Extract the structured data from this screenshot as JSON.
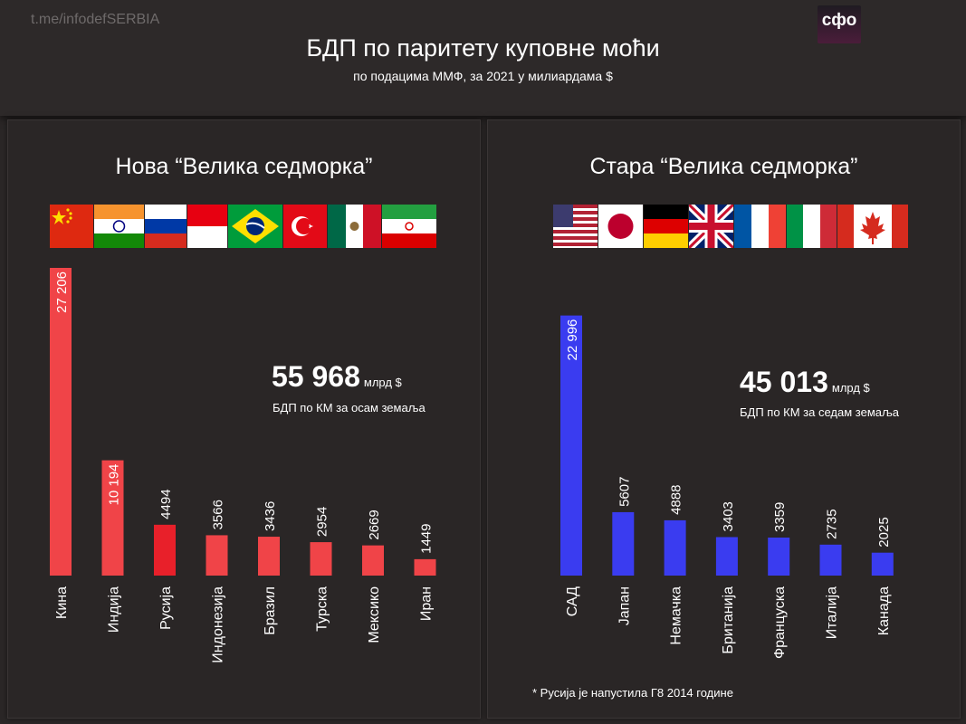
{
  "header": {
    "watermark": "t.me/infodefSERBIA",
    "logo_text": "сфо",
    "title": "БДП по паритету куповне моћи",
    "subtitle": "по подацима ММФ, за 2021 у милиардама $"
  },
  "left_panel": {
    "title": "Нова “Велика седморка”",
    "flags": [
      "china-flag",
      "india-flag",
      "russia-flag",
      "indonesia-flag",
      "brazil-flag",
      "turkey-flag",
      "mexico-flag",
      "iran-flag"
    ],
    "total": "55 968",
    "total_unit": "млрд $",
    "total_desc": "БДП по КМ за осам земаља"
  },
  "right_panel": {
    "title": "Стара “Велика седморка”",
    "flags": [
      "usa-flag",
      "japan-flag",
      "germany-flag",
      "uk-flag",
      "france-flag",
      "italy-flag",
      "canada-flag"
    ],
    "total": "45 013",
    "total_unit": "млрд $",
    "total_desc": "БДП по КМ за седам земаља"
  },
  "footnote": "* Русија је напустила Г8 2014 године",
  "chart_data": [
    {
      "type": "bar",
      "categories": [
        "Кина",
        "Индија",
        "Русија",
        "Индонезија",
        "Бразил",
        "Турска",
        "Мексико",
        "Иран"
      ],
      "values": [
        27206,
        10194,
        4494,
        3566,
        3436,
        2954,
        2669,
        1449
      ],
      "labels": [
        "27 206",
        "10 194",
        "4494",
        "3566",
        "3436",
        "2954",
        "2669",
        "1449"
      ],
      "colors": [
        "#f04448",
        "#f04448",
        "#e8202a",
        "#f04448",
        "#f04448",
        "#f04448",
        "#f04448",
        "#f04448"
      ]
    },
    {
      "type": "bar",
      "categories": [
        "САД",
        "Јапан",
        "Немачка",
        "Британија",
        "Француска",
        "Италија",
        "Канада"
      ],
      "values": [
        22996,
        5607,
        4888,
        3403,
        3359,
        2735,
        2025
      ],
      "labels": [
        "22 996",
        "5607",
        "4888",
        "3403",
        "3359",
        "2735",
        "2025"
      ],
      "colors": [
        "#3a3cf0",
        "#3a3cf0",
        "#3a3cf0",
        "#3a3cf0",
        "#3a3cf0",
        "#3a3cf0",
        "#3a3cf0"
      ]
    }
  ]
}
